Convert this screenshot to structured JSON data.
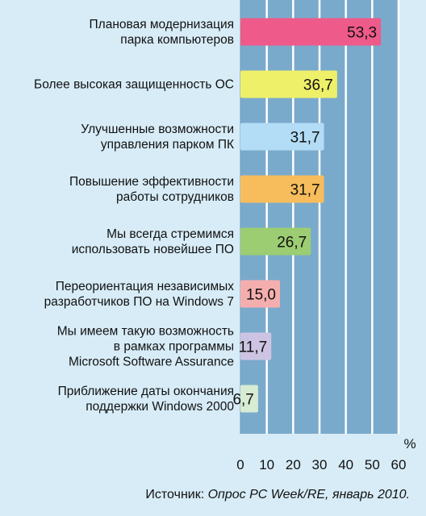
{
  "chart_data": {
    "type": "bar",
    "orientation": "horizontal",
    "unit": "%",
    "categories": [
      [
        "Плановая модернизация",
        "парка компьютеров"
      ],
      [
        "Более высокая защищенность ОС"
      ],
      [
        "Улучшенные возможности",
        "управления парком ПК"
      ],
      [
        "Повышение эффективности",
        "работы сотрудников"
      ],
      [
        "Мы всегда стремимся",
        "использовать новейшее ПО"
      ],
      [
        "Переориентация независимых",
        "разработчиков ПО на Windows 7"
      ],
      [
        "Мы имеем такую возможность",
        "в рамках программы",
        "Microsoft Software Assurance"
      ],
      [
        "Приближение даты окончания",
        "поддержки Windows 2000"
      ]
    ],
    "values": [
      53.3,
      36.7,
      31.7,
      31.7,
      26.7,
      15.0,
      11.7,
      6.7
    ],
    "value_labels": [
      "53,3",
      "36,7",
      "31,7",
      "31,7",
      "26,7",
      "15,0",
      "11,7",
      "6,7"
    ],
    "bar_colors": [
      "#ee5a8a",
      "#eef06a",
      "#b3dcf6",
      "#f7bd5c",
      "#9ccd72",
      "#f5aeae",
      "#cdc4e3",
      "#d7ecd3"
    ],
    "xlim": [
      0,
      60
    ],
    "xticks": [
      0,
      10,
      20,
      30,
      40,
      50,
      60
    ],
    "grid": true,
    "plot_background": "#7aaacb",
    "grid_color": "#ffffff"
  },
  "source": {
    "prefix": "Источник: ",
    "text": "Опрос PC Week/RE, январь 2010."
  }
}
